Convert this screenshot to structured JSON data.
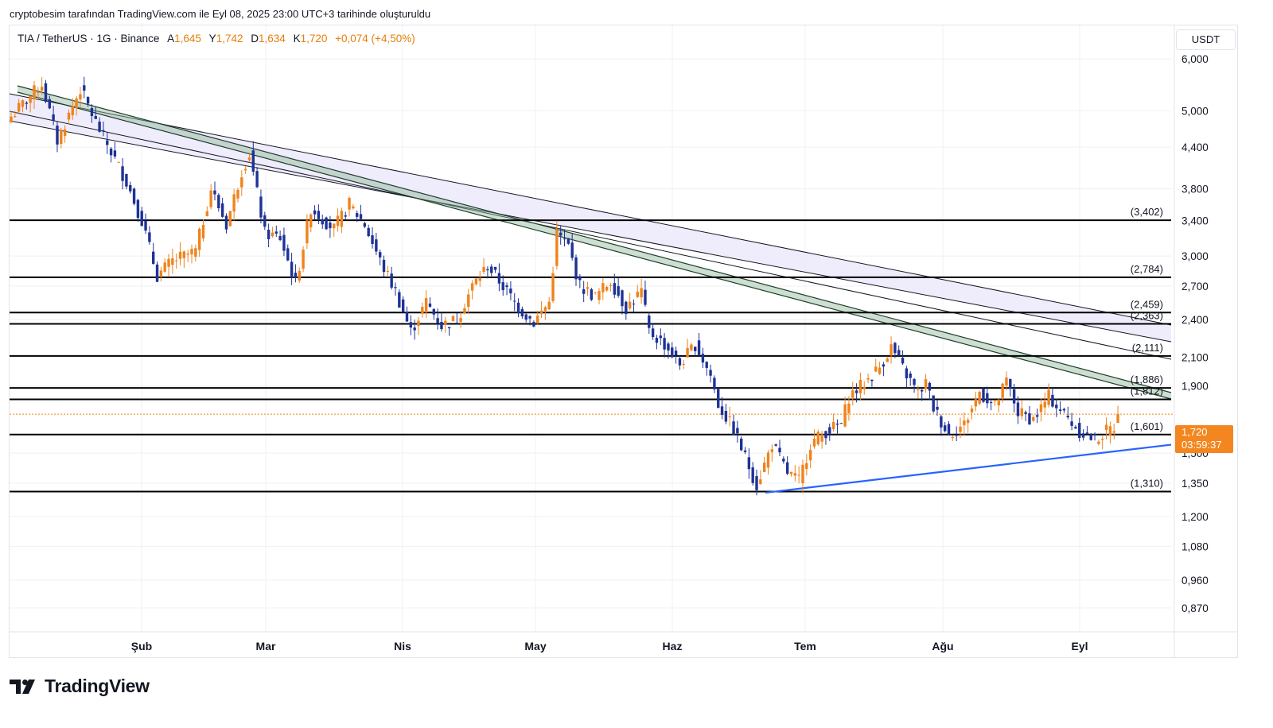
{
  "header": {
    "attribution": "cryptobesim tarafından TradingView.com ile Eyl 08, 2025 23:00 UTC+3 tarihinde oluşturuldu"
  },
  "legend": {
    "symbol": "TIA / TetherUS · 1G · Binance",
    "open_key": "A",
    "open": "1,645",
    "high_key": "Y",
    "high": "1,742",
    "low_key": "D",
    "low": "1,634",
    "close_key": "K",
    "close": "1,720",
    "change": "+0,074 (+4,50%)"
  },
  "currency": "USDT",
  "price_tag": {
    "price": "1,720",
    "countdown": "03:59:37"
  },
  "brand": {
    "name": "TradingView"
  },
  "colors": {
    "up": "#f0831c",
    "down": "#1e3296",
    "level": "#000000",
    "support": "#2962ff",
    "channel_fill": "#ece9fb",
    "channel_green": "#8fb89a",
    "grid": "#eef0f3",
    "axis_text": "#131722"
  },
  "chart_data": {
    "type": "candlestick",
    "y_scale": "log",
    "ylim": [
      0.8,
      6.75
    ],
    "y_ticks": [
      "6,000",
      "5,000",
      "4,400",
      "3,800",
      "3,400",
      "3,000",
      "2,700",
      "2,400",
      "2,100",
      "1,900",
      "1,500",
      "1,350",
      "1,200",
      "1,080",
      "0,960",
      "0,870"
    ],
    "x_ticks": [
      "Şub",
      "Mar",
      "Nis",
      "May",
      "Haz",
      "Tem",
      "Ağu",
      "Eyl"
    ],
    "horizontal_levels": [
      {
        "value": 3.402,
        "label": "(3,402)"
      },
      {
        "value": 2.784,
        "label": "(2,784)"
      },
      {
        "value": 2.459,
        "label": "(2,459)"
      },
      {
        "value": 2.363,
        "label": "(2,363)"
      },
      {
        "value": 2.111,
        "label": "(2,111)"
      },
      {
        "value": 1.886,
        "label": "(1,886)"
      },
      {
        "value": 1.812,
        "label": "(1,812)"
      },
      {
        "value": 1.601,
        "label": "(1,601)"
      },
      {
        "value": 1.31,
        "label": "(1,310)"
      }
    ],
    "last_price": 1.72,
    "ohlc_anchors": [
      [
        0,
        4.9
      ],
      [
        8,
        5.5
      ],
      [
        12,
        4.5
      ],
      [
        18,
        5.4
      ],
      [
        22,
        4.8
      ],
      [
        30,
        3.9
      ],
      [
        34,
        3.4
      ],
      [
        38,
        2.8
      ],
      [
        42,
        2.95
      ],
      [
        48,
        3.05
      ],
      [
        52,
        3.8
      ],
      [
        56,
        3.35
      ],
      [
        60,
        4.05
      ],
      [
        62,
        4.3
      ],
      [
        66,
        3.25
      ],
      [
        70,
        3.2
      ],
      [
        74,
        2.72
      ],
      [
        78,
        3.55
      ],
      [
        84,
        3.3
      ],
      [
        88,
        3.6
      ],
      [
        92,
        3.35
      ],
      [
        96,
        2.95
      ],
      [
        100,
        2.65
      ],
      [
        104,
        2.3
      ],
      [
        108,
        2.55
      ],
      [
        112,
        2.35
      ],
      [
        116,
        2.4
      ],
      [
        120,
        2.7
      ],
      [
        124,
        2.9
      ],
      [
        128,
        2.7
      ],
      [
        132,
        2.5
      ],
      [
        136,
        2.38
      ],
      [
        140,
        2.55
      ],
      [
        142,
        3.25
      ],
      [
        145,
        3.1
      ],
      [
        148,
        2.7
      ],
      [
        152,
        2.6
      ],
      [
        156,
        2.75
      ],
      [
        160,
        2.5
      ],
      [
        164,
        2.65
      ],
      [
        166,
        2.3
      ],
      [
        170,
        2.2
      ],
      [
        174,
        2.05
      ],
      [
        178,
        2.2
      ],
      [
        182,
        1.97
      ],
      [
        184,
        1.78
      ],
      [
        188,
        1.63
      ],
      [
        192,
        1.43
      ],
      [
        194,
        1.34
      ],
      [
        198,
        1.55
      ],
      [
        202,
        1.4
      ],
      [
        205,
        1.36
      ],
      [
        208,
        1.55
      ],
      [
        212,
        1.62
      ],
      [
        216,
        1.66
      ],
      [
        218,
        1.83
      ],
      [
        222,
        1.92
      ],
      [
        226,
        2.03
      ],
      [
        229,
        2.18
      ],
      [
        232,
        2.02
      ],
      [
        236,
        1.85
      ],
      [
        238,
        1.92
      ],
      [
        240,
        1.76
      ],
      [
        244,
        1.6
      ],
      [
        248,
        1.66
      ],
      [
        252,
        1.86
      ],
      [
        256,
        1.77
      ],
      [
        259,
        1.93
      ],
      [
        262,
        1.73
      ],
      [
        266,
        1.69
      ],
      [
        270,
        1.83
      ],
      [
        274,
        1.72
      ],
      [
        278,
        1.62
      ],
      [
        282,
        1.57
      ],
      [
        285,
        1.62
      ],
      [
        287,
        1.645
      ],
      [
        288,
        1.72
      ]
    ]
  }
}
